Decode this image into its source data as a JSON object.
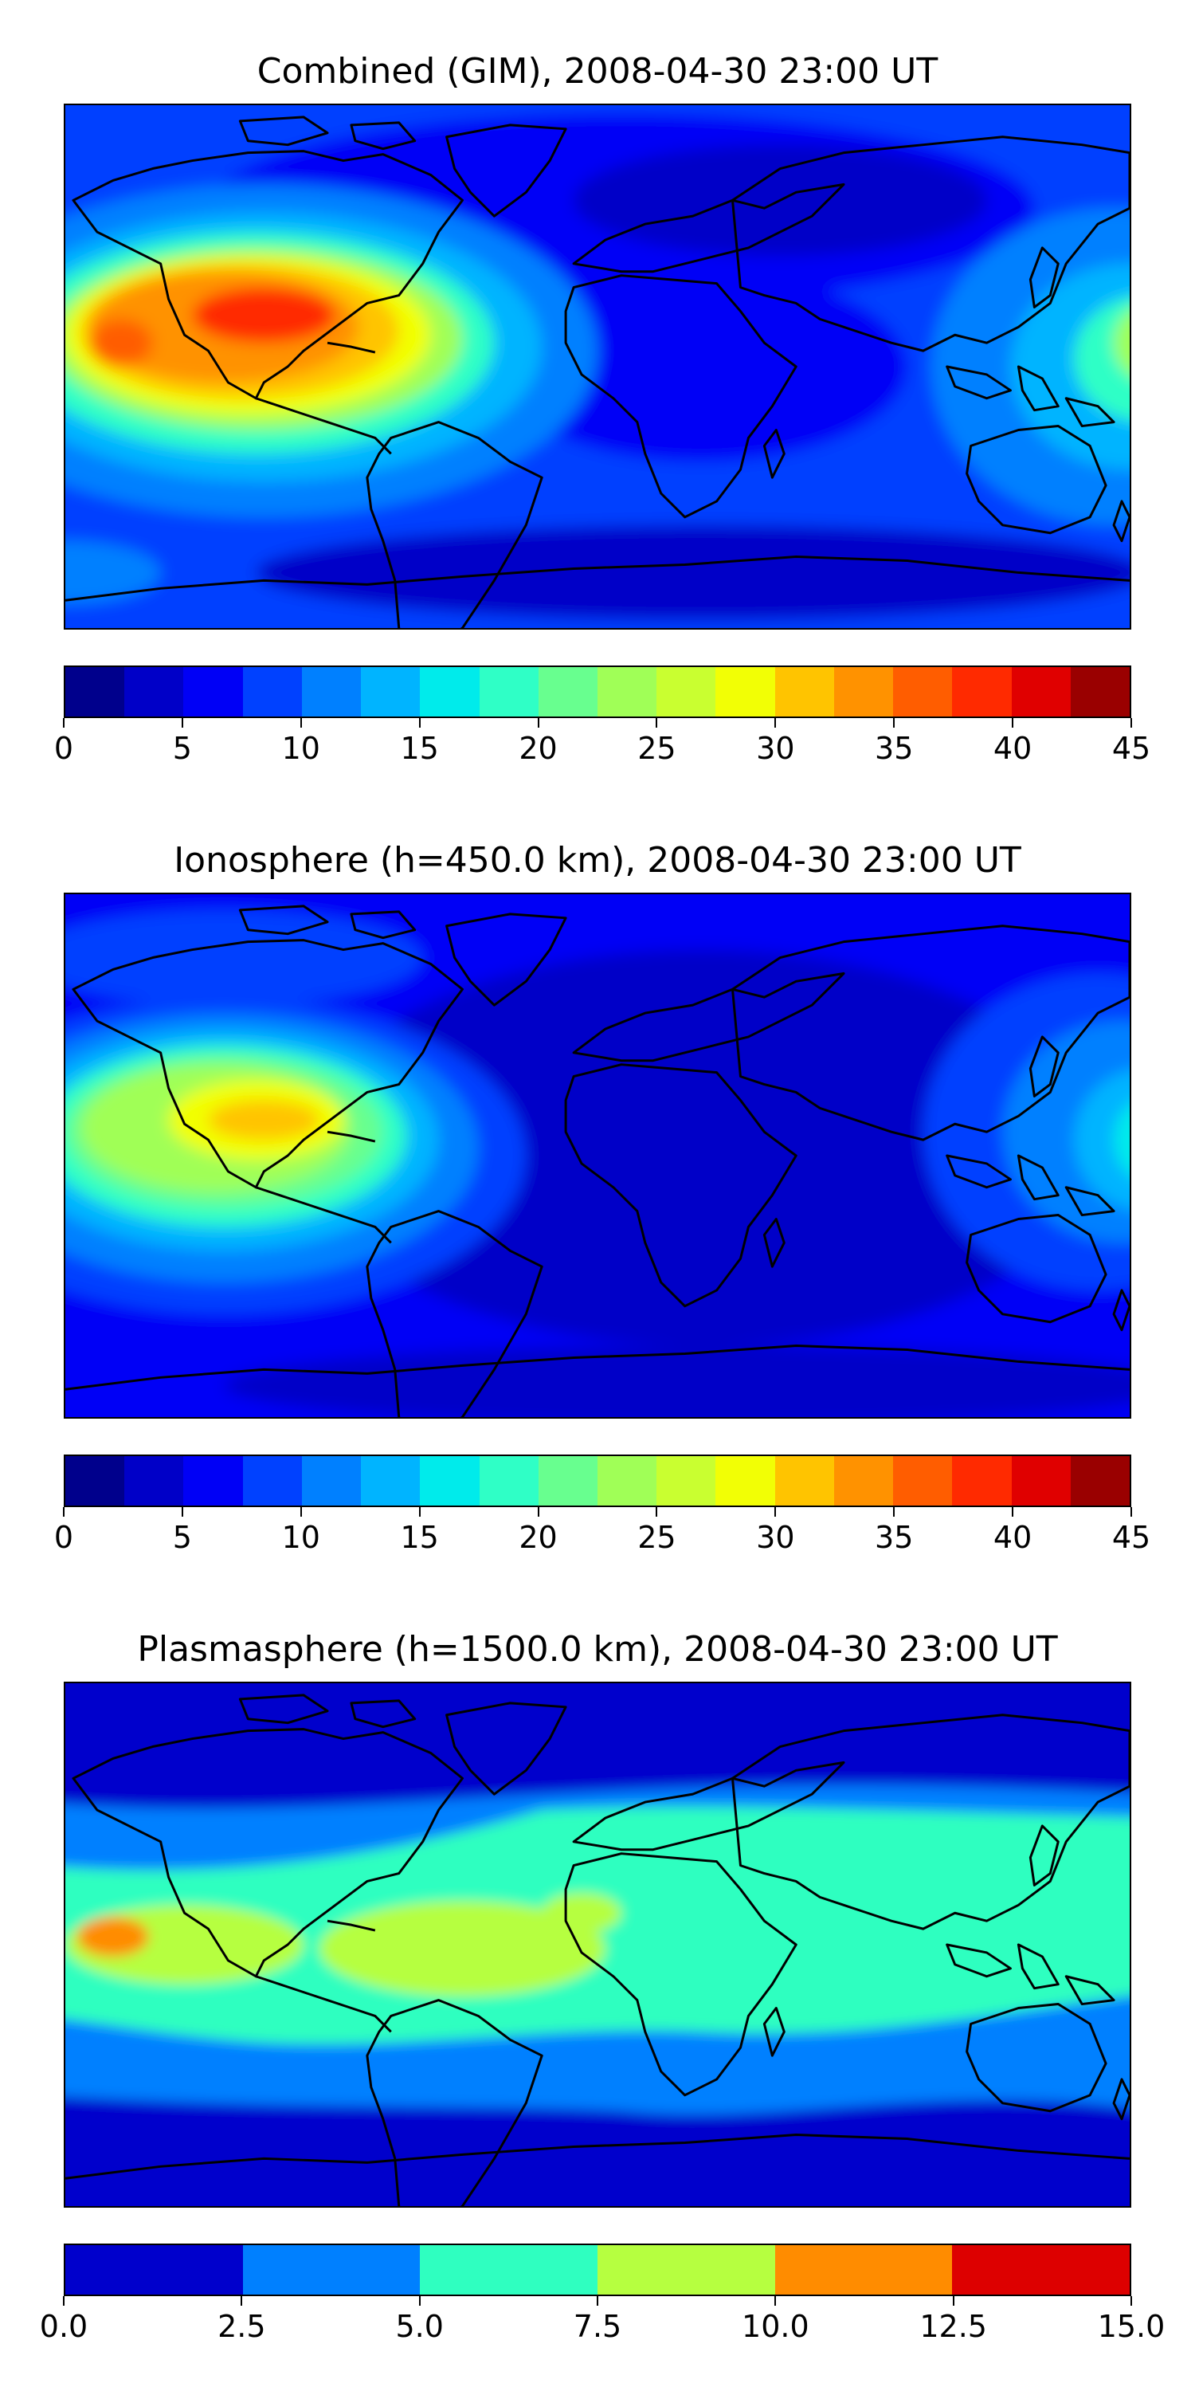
{
  "panels": [
    {
      "title": "Combined (GIM), 2008-04-30 23:00 UT",
      "colorbar": {
        "colors": [
          "#00008c",
          "#0000c8",
          "#0000f6",
          "#0041ff",
          "#0080ff",
          "#00b4ff",
          "#00ebeb",
          "#2fffc6",
          "#68ff8f",
          "#a0ff57",
          "#c9ff30",
          "#f2ff05",
          "#ffc400",
          "#ff9200",
          "#ff5d00",
          "#ff2a00",
          "#e00000",
          "#9a0000"
        ],
        "ticks": [
          "0",
          "5",
          "10",
          "15",
          "20",
          "25",
          "30",
          "35",
          "40",
          "45"
        ]
      }
    },
    {
      "title": "Ionosphere  (h=450.0 km), 2008-04-30 23:00 UT",
      "colorbar": {
        "colors": [
          "#00008c",
          "#0000c8",
          "#0000f6",
          "#0041ff",
          "#0080ff",
          "#00b4ff",
          "#00ebeb",
          "#2fffc6",
          "#68ff8f",
          "#a0ff57",
          "#c9ff30",
          "#f2ff05",
          "#ffc400",
          "#ff9200",
          "#ff5d00",
          "#ff2a00",
          "#e00000",
          "#9a0000"
        ],
        "ticks": [
          "0",
          "5",
          "10",
          "15",
          "20",
          "25",
          "30",
          "35",
          "40",
          "45"
        ]
      }
    },
    {
      "title": "Plasmasphere (h=1500.0 km), 2008-04-30 23:00 UT",
      "colorbar": {
        "colors": [
          "#0000cc",
          "#0080ff",
          "#2fffc0",
          "#b6ff40",
          "#ff8c00",
          "#dd0000"
        ],
        "ticks": [
          "0.0",
          "2.5",
          "5.0",
          "7.5",
          "10.0",
          "12.5",
          "15.0"
        ]
      }
    }
  ]
}
